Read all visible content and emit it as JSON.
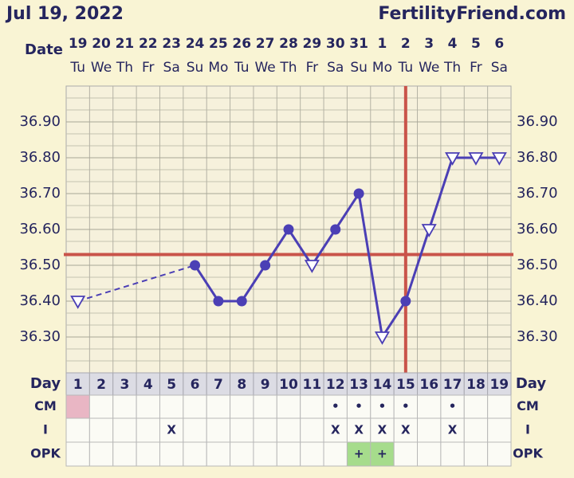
{
  "header": {
    "date": "Jul 19, 2022",
    "site": "FertilityFriend.com"
  },
  "chart_data": {
    "type": "line",
    "date_label": "Date",
    "dates": [
      "19",
      "20",
      "21",
      "22",
      "23",
      "24",
      "25",
      "26",
      "27",
      "28",
      "29",
      "30",
      "31",
      "1",
      "2",
      "3",
      "4",
      "5",
      "6"
    ],
    "weekdays": [
      "Tu",
      "We",
      "Th",
      "Fr",
      "Sa",
      "Su",
      "Mo",
      "Tu",
      "We",
      "Th",
      "Fr",
      "Sa",
      "Su",
      "Mo",
      "Tu",
      "We",
      "Th",
      "Fr",
      "Sa"
    ],
    "values": [
      36.4,
      null,
      null,
      null,
      null,
      36.5,
      36.4,
      36.4,
      36.5,
      36.6,
      36.5,
      36.6,
      36.7,
      36.3,
      36.4,
      36.6,
      36.8,
      36.8,
      36.8
    ],
    "markers": [
      "triangle",
      null,
      null,
      null,
      null,
      "circle",
      "circle",
      "circle",
      "circle",
      "circle",
      "triangle",
      "circle",
      "circle",
      "triangle",
      "circle",
      "triangle",
      "triangle",
      "triangle",
      "triangle"
    ],
    "color": "#4b3fb5",
    "coverline": 36.53,
    "ovulation_day": 15,
    "line_color": "#c9544a",
    "ylim": [
      36.2,
      37.0
    ],
    "yticks": [
      {
        "value": 36.3,
        "label": "36.30"
      },
      {
        "value": 36.4,
        "label": "36.40"
      },
      {
        "value": 36.5,
        "label": "36.50"
      },
      {
        "value": 36.6,
        "label": "36.60"
      },
      {
        "value": 36.7,
        "label": "36.70"
      },
      {
        "value": 36.8,
        "label": "36.80"
      },
      {
        "value": 36.9,
        "label": "36.90"
      }
    ],
    "grid": true,
    "day_label": "Day",
    "categories": [
      "1",
      "2",
      "3",
      "4",
      "5",
      "6",
      "7",
      "8",
      "9",
      "10",
      "11",
      "12",
      "13",
      "14",
      "15",
      "16",
      "17",
      "18",
      "19"
    ],
    "rows": [
      {
        "label": "CM",
        "marks": {
          "12": "•",
          "13": "•",
          "14": "•",
          "15": "•",
          "17": "•"
        },
        "fills": {
          "1": "#e9b6c4"
        }
      },
      {
        "label": "I",
        "marks": {
          "5": "X",
          "12": "X",
          "13": "X",
          "14": "X",
          "15": "X",
          "17": "X"
        },
        "fills": {}
      },
      {
        "label": "OPK",
        "marks": {
          "13": "+",
          "14": "+"
        },
        "fills": {
          "13": "#a6dc8c",
          "14": "#a6dc8c"
        }
      }
    ]
  }
}
